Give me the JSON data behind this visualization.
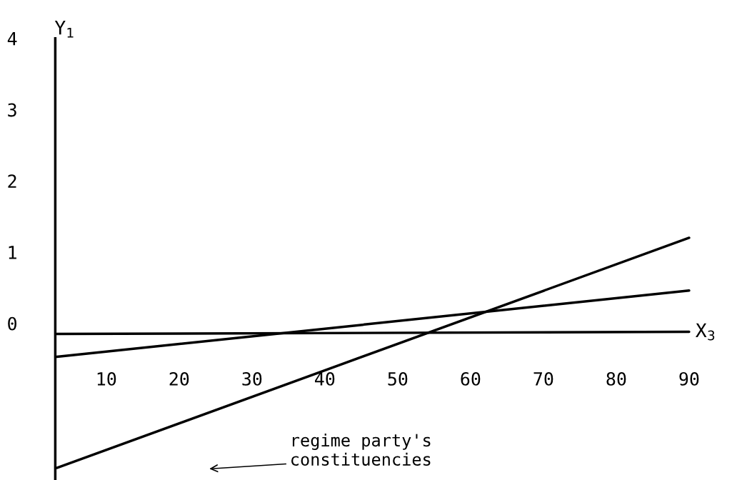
{
  "chart_data": {
    "type": "line",
    "xlabel": "X$_{3}$",
    "ylabel": "Y$_{1}$",
    "series": [
      {
        "color": "#000000",
        "values": [
          -0.15,
          -0.12
        ]
      },
      {
        "color": "#000000",
        "values": [
          -0.47,
          0.46
        ]
      },
      {
        "color": "#000000",
        "values": [
          -2.03,
          1.2
        ]
      }
    ],
    "x": [
      3.2,
      90
    ],
    "xlim": [
      3,
      90
    ],
    "ylim": [
      -2.2,
      4
    ],
    "xticks": [
      10,
      20,
      30,
      40,
      50,
      60,
      70,
      80,
      90
    ],
    "yticks": [
      0,
      1,
      2,
      3,
      4
    ],
    "annotations": [
      "regime party's\nconstituencies"
    ],
    "grid": false,
    "legend": false,
    "marker": "none",
    "line_style": "solid"
  }
}
